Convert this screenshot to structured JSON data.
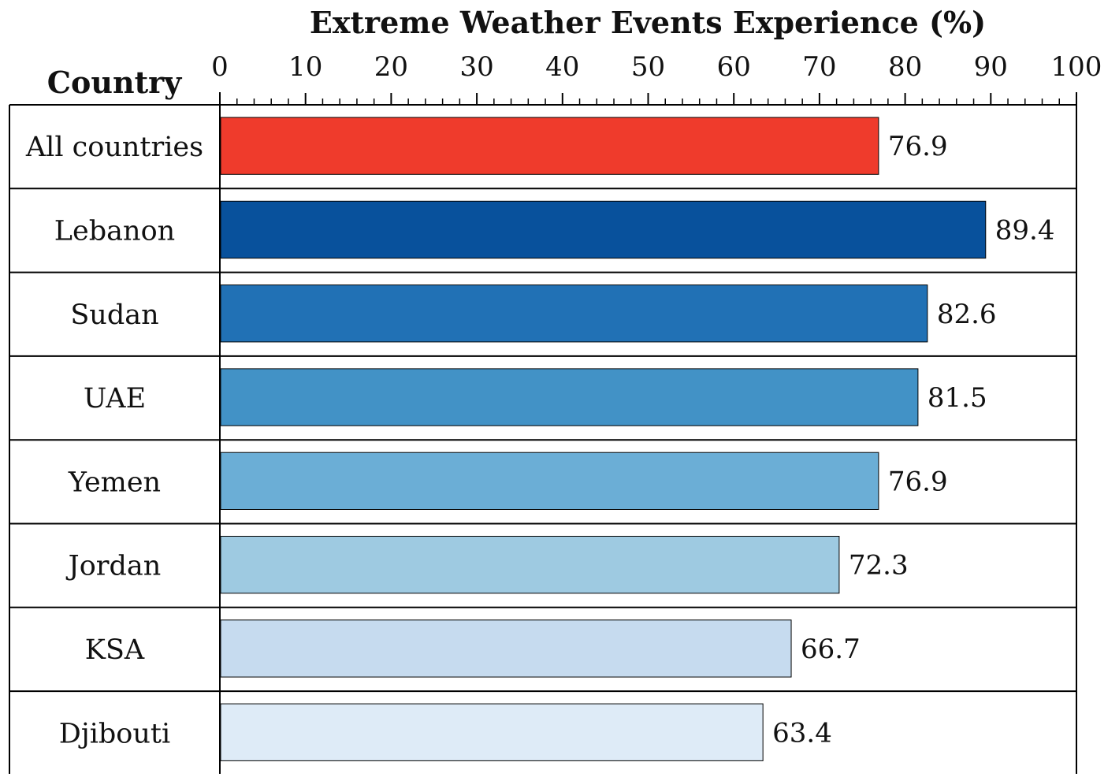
{
  "chart_data": {
    "type": "bar",
    "orientation": "horizontal",
    "title": "Extreme Weather Events Experience (%)",
    "category_header": "Country",
    "categories": [
      "All countries",
      "Lebanon",
      "Sudan",
      "UAE",
      "Yemen",
      "Jordan",
      "KSA",
      "Djibouti"
    ],
    "values": [
      76.9,
      89.4,
      82.6,
      81.5,
      76.9,
      72.3,
      66.7,
      63.4
    ],
    "value_labels": [
      "76.9",
      "89.4",
      "82.6",
      "81.5",
      "76.9",
      "72.3",
      "66.7",
      "63.4"
    ],
    "colors": [
      "#ef3b2c",
      "#08519c",
      "#2171b5",
      "#4292c6",
      "#6baed6",
      "#9ecae1",
      "#c6dbef",
      "#deebf7"
    ],
    "xlim": [
      0,
      100
    ],
    "x_ticks": [
      0,
      10,
      20,
      30,
      40,
      50,
      60,
      70,
      80,
      90,
      100
    ],
    "x_tick_labels": [
      "0",
      "10",
      "20",
      "30",
      "40",
      "50",
      "60",
      "70",
      "80",
      "90",
      "100"
    ],
    "axis_position": "top",
    "grid": false,
    "legend": "none"
  }
}
